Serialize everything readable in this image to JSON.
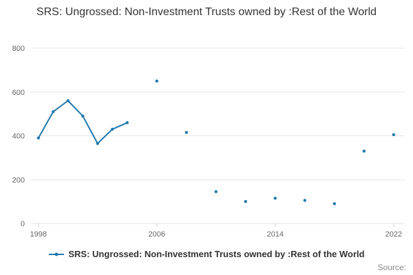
{
  "title": "SRS: Ungrossed: Non-Investment Trusts owned by :Rest of the World",
  "legend": {
    "label": "SRS: Ungrossed: Non-Investment Trusts owned by :Rest of the World"
  },
  "source": "Source:",
  "colors": {
    "accent": "#2079ad",
    "grid": "#e6e6e6",
    "tick": "#666666",
    "title": "#333333"
  },
  "chart_data": {
    "type": "line",
    "title": "SRS: Ungrossed: Non-Investment Trusts owned by :Rest of the World",
    "xlabel": "",
    "ylabel": "",
    "x": [
      1998,
      1999,
      2000,
      2001,
      2002,
      2003,
      2004,
      2005,
      2006,
      2007,
      2008,
      2009,
      2010,
      2011,
      2012,
      2013,
      2014,
      2015,
      2016,
      2017,
      2018,
      2019,
      2020,
      2021,
      2022
    ],
    "values": [
      390,
      510,
      560,
      490,
      365,
      430,
      460,
      null,
      650,
      null,
      415,
      null,
      145,
      null,
      100,
      null,
      115,
      null,
      105,
      null,
      90,
      null,
      330,
      null,
      405
    ],
    "xlim": [
      1997.5,
      2022.75
    ],
    "ylim": [
      0,
      800
    ],
    "xticks": [
      1998,
      2006,
      2014,
      2022
    ],
    "yticks": [
      0,
      200,
      400,
      600,
      800
    ],
    "grid": "horizontal",
    "legend_position": "bottom-center",
    "marker": "dot"
  }
}
